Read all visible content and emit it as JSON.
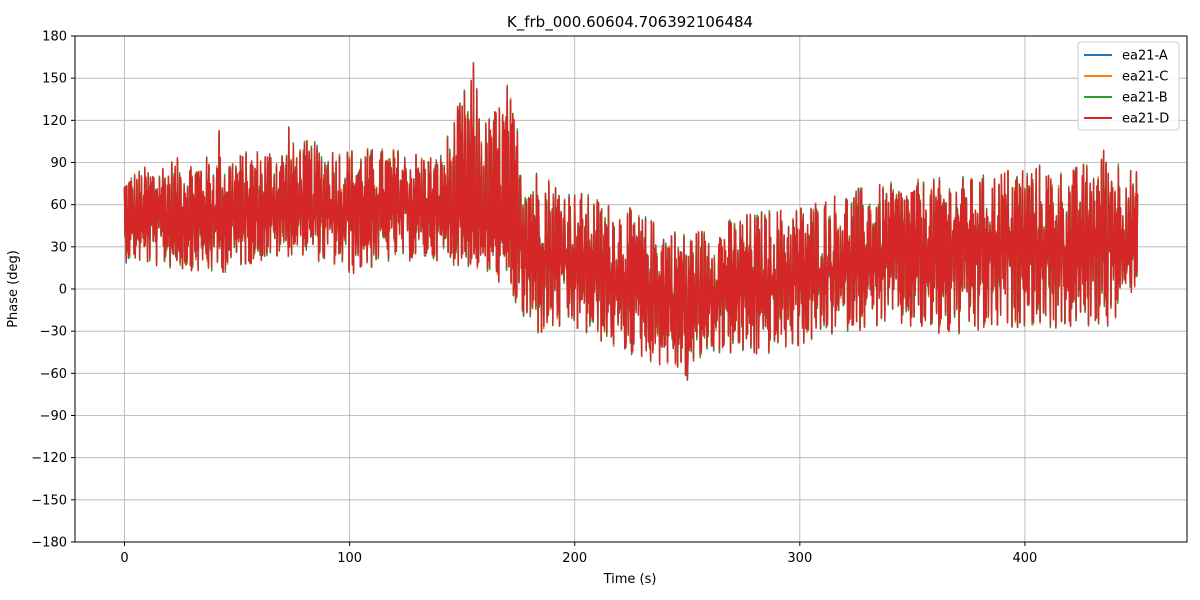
{
  "chart_data": {
    "type": "line",
    "title": "K_frb_000.60604.706392106484",
    "xlabel": "Time (s)",
    "ylabel": "Phase (deg)",
    "xlim": [
      -22,
      472
    ],
    "ylim": [
      -180,
      180
    ],
    "xticks": [
      0,
      100,
      200,
      300,
      400
    ],
    "yticks": [
      -180,
      -150,
      -120,
      -90,
      -60,
      -30,
      0,
      30,
      60,
      90,
      120,
      150,
      180
    ],
    "grid": true,
    "legend_position": "top-right",
    "series": [
      {
        "name": "ea21-A",
        "color": "#1f77b4"
      },
      {
        "name": "ea21-C",
        "color": "#ff7f0e"
      },
      {
        "name": "ea21-B",
        "color": "#2ca02c"
      },
      {
        "name": "ea21-D",
        "color": "#d62728"
      }
    ],
    "x": [
      0,
      20,
      40,
      60,
      80,
      100,
      120,
      140,
      155,
      160,
      170,
      180,
      200,
      220,
      240,
      250,
      260,
      280,
      300,
      320,
      340,
      360,
      380,
      400,
      420,
      440,
      450
    ],
    "trend": [
      48,
      52,
      50,
      55,
      58,
      55,
      57,
      55,
      50,
      48,
      40,
      28,
      18,
      5,
      -5,
      -8,
      -2,
      2,
      5,
      15,
      22,
      28,
      30,
      28,
      25,
      32,
      35
    ],
    "band": [
      [
        20,
        82
      ],
      [
        15,
        92
      ],
      [
        10,
        95
      ],
      [
        20,
        100
      ],
      [
        25,
        105
      ],
      [
        10,
        100
      ],
      [
        20,
        100
      ],
      [
        20,
        95
      ],
      [
        15,
        160
      ],
      [
        10,
        120
      ],
      [
        0,
        145
      ],
      [
        -35,
        90
      ],
      [
        -30,
        70
      ],
      [
        -45,
        60
      ],
      [
        -55,
        45
      ],
      [
        -65,
        40
      ],
      [
        -45,
        45
      ],
      [
        -50,
        55
      ],
      [
        -40,
        60
      ],
      [
        -30,
        70
      ],
      [
        -25,
        75
      ],
      [
        -35,
        78
      ],
      [
        -35,
        80
      ],
      [
        -25,
        90
      ],
      [
        -30,
        85
      ],
      [
        -25,
        98
      ],
      [
        5,
        82
      ]
    ],
    "spikes": [
      [
        155,
        160
      ],
      [
        170,
        145
      ],
      [
        163,
        108
      ],
      [
        250,
        -65
      ],
      [
        435,
        98
      ],
      [
        73,
        115
      ],
      [
        42,
        112
      ]
    ]
  }
}
